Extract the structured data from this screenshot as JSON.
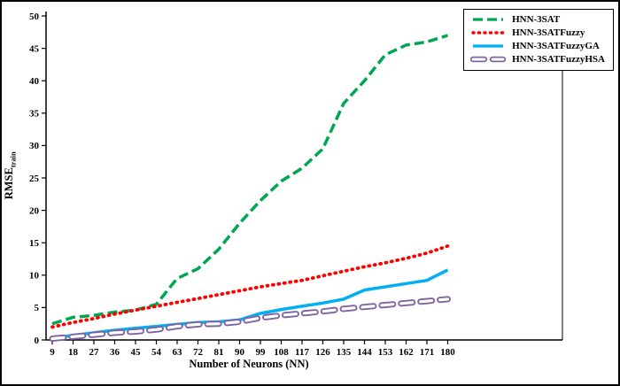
{
  "chart_data": {
    "type": "line",
    "xlabel": "Number of Neurons (NN)",
    "ylabel": "RMSE",
    "ylabel_sub": "train",
    "ylim": [
      0,
      50
    ],
    "yticks": [
      0,
      5,
      10,
      15,
      20,
      25,
      30,
      35,
      40,
      45,
      50
    ],
    "grid": false,
    "legend_position": "top-right",
    "x": [
      9,
      18,
      27,
      36,
      45,
      54,
      63,
      72,
      81,
      90,
      99,
      108,
      117,
      126,
      135,
      144,
      153,
      162,
      171,
      180
    ],
    "series": [
      {
        "name": "HNN-3SAT",
        "color": "#00A651",
        "style": "dashed",
        "values": [
          2.5,
          3.5,
          3.8,
          4.3,
          4.6,
          5.5,
          9.5,
          11,
          14,
          18,
          21.5,
          24.5,
          26.5,
          29.5,
          36.5,
          40,
          44,
          45.5,
          46,
          47
        ]
      },
      {
        "name": "HNN-3SATFuzzy",
        "color": "#FF0000",
        "style": "dotted",
        "values": [
          2,
          2.7,
          3.3,
          4,
          4.6,
          5.2,
          5.8,
          6.4,
          7,
          7.6,
          8.2,
          8.7,
          9.2,
          9.9,
          10.6,
          11.3,
          11.9,
          12.6,
          13.4,
          14.5
        ]
      },
      {
        "name": "HNN-3SATFuzzyGA",
        "color": "#00B0F0",
        "style": "solid",
        "values": [
          0.3,
          0.7,
          1.1,
          1.5,
          1.8,
          2.1,
          2.4,
          2.7,
          2.8,
          3.1,
          4.1,
          4.7,
          5.2,
          5.7,
          6.3,
          7.7,
          8.2,
          8.7,
          9.2,
          10.8
        ]
      },
      {
        "name": "HNN-3SATFuzzyHSA",
        "color": "#8064A2",
        "style": "hollow-dash",
        "values": [
          0.2,
          0.5,
          0.8,
          1.1,
          1.3,
          1.6,
          2.1,
          2.4,
          2.5,
          2.8,
          3.4,
          3.8,
          4.1,
          4.4,
          4.8,
          5.1,
          5.4,
          5.7,
          6.0,
          6.3
        ]
      }
    ]
  }
}
